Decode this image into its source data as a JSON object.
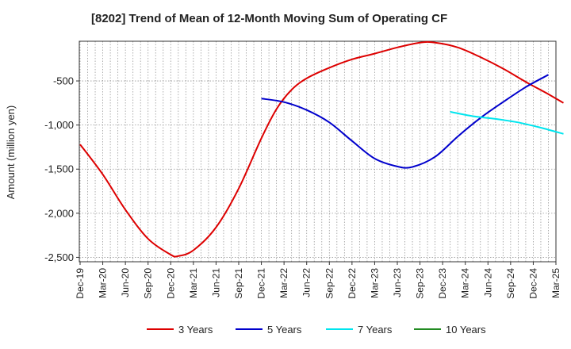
{
  "chart_data": {
    "type": "line",
    "title": "[8202]  Trend of Mean of 12-Month Moving Sum of Operating CF",
    "xlabel": "",
    "ylabel": "Amount (million yen)",
    "ylim": [
      -2550,
      -50
    ],
    "yticks": [
      -2500,
      -2000,
      -1500,
      -1000,
      -500
    ],
    "ytick_labels": [
      "-2,500",
      "-2,000",
      "-1,500",
      "-1,000",
      "-500"
    ],
    "x_tick_labels": [
      "Dec-19",
      "Mar-20",
      "Jun-20",
      "Sep-20",
      "Dec-20",
      "Mar-21",
      "Jun-21",
      "Sep-21",
      "Dec-21",
      "Mar-22",
      "Jun-22",
      "Sep-22",
      "Dec-22",
      "Mar-23",
      "Jun-23",
      "Sep-23",
      "Dec-23",
      "Mar-24",
      "Jun-24",
      "Sep-24",
      "Dec-24",
      "Mar-25"
    ],
    "x_index_range": [
      0,
      63
    ],
    "grid": true,
    "series": [
      {
        "name": "3 Years",
        "color": "#dd0000",
        "points": [
          [
            0,
            -1220
          ],
          [
            3,
            -1560
          ],
          [
            6,
            -1960
          ],
          [
            9,
            -2290
          ],
          [
            12,
            -2470
          ],
          [
            13,
            -2485
          ],
          [
            15,
            -2420
          ],
          [
            18,
            -2160
          ],
          [
            21,
            -1720
          ],
          [
            24,
            -1150
          ],
          [
            26,
            -820
          ],
          [
            28,
            -600
          ],
          [
            30,
            -470
          ],
          [
            33,
            -350
          ],
          [
            36,
            -255
          ],
          [
            39,
            -190
          ],
          [
            42,
            -120
          ],
          [
            45,
            -65
          ],
          [
            47,
            -65
          ],
          [
            50,
            -120
          ],
          [
            53,
            -230
          ],
          [
            56,
            -360
          ],
          [
            59,
            -510
          ],
          [
            62,
            -650
          ],
          [
            64,
            -750
          ]
        ]
      },
      {
        "name": "5 Years",
        "color": "#0000cc",
        "points": [
          [
            24,
            -700
          ],
          [
            27,
            -740
          ],
          [
            30,
            -830
          ],
          [
            33,
            -970
          ],
          [
            36,
            -1180
          ],
          [
            39,
            -1380
          ],
          [
            42,
            -1470
          ],
          [
            44,
            -1475
          ],
          [
            47,
            -1360
          ],
          [
            50,
            -1130
          ],
          [
            53,
            -920
          ],
          [
            56,
            -740
          ],
          [
            59,
            -570
          ],
          [
            62,
            -430
          ]
        ]
      },
      {
        "name": "7 Years",
        "color": "#00e5ee",
        "points": [
          [
            49,
            -850
          ],
          [
            52,
            -900
          ],
          [
            55,
            -930
          ],
          [
            58,
            -970
          ],
          [
            61,
            -1030
          ],
          [
            64,
            -1100
          ]
        ]
      },
      {
        "name": "10 Years",
        "color": "#228b22",
        "points": []
      }
    ],
    "legend_position": "bottom"
  }
}
